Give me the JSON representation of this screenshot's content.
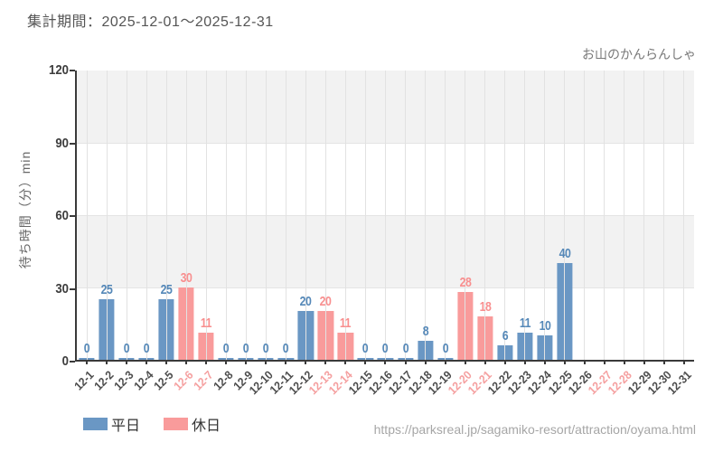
{
  "header": {
    "period_label": "集計期間：2025-12-01～2025-12-31"
  },
  "chart_data": {
    "type": "bar",
    "title": "お山のかんらんしゃ",
    "xlabel": "",
    "ylabel": "待ち時間（分）min",
    "ylim": [
      0,
      120
    ],
    "yticks": [
      0,
      30,
      60,
      90,
      120
    ],
    "grid": true,
    "legend_position": "bottom-left",
    "categories": [
      "12-1",
      "12-2",
      "12-3",
      "12-4",
      "12-5",
      "12-6",
      "12-7",
      "12-8",
      "12-9",
      "12-10",
      "12-11",
      "12-12",
      "12-13",
      "12-14",
      "12-15",
      "12-16",
      "12-17",
      "12-18",
      "12-19",
      "12-20",
      "12-21",
      "12-22",
      "12-23",
      "12-24",
      "12-25",
      "12-26",
      "12-27",
      "12-28",
      "12-29",
      "12-30",
      "12-31"
    ],
    "values": [
      0,
      25,
      0,
      0,
      25,
      30,
      11,
      0,
      0,
      0,
      0,
      20,
      20,
      11,
      0,
      0,
      0,
      8,
      0,
      28,
      18,
      6,
      11,
      10,
      40,
      null,
      null,
      null,
      null,
      null,
      null
    ],
    "day_types": [
      "weekday",
      "weekday",
      "weekday",
      "weekday",
      "weekday",
      "holiday",
      "holiday",
      "weekday",
      "weekday",
      "weekday",
      "weekday",
      "weekday",
      "holiday",
      "holiday",
      "weekday",
      "weekday",
      "weekday",
      "weekday",
      "weekday",
      "holiday",
      "holiday",
      "weekday",
      "weekday",
      "weekday",
      "weekday",
      "weekday",
      "holiday",
      "holiday",
      "weekday",
      "weekday",
      "weekday"
    ],
    "series": [
      {
        "name": "平日",
        "color": "#6A97C4"
      },
      {
        "name": "休日",
        "color": "#F99B9B"
      }
    ]
  },
  "colors": {
    "weekday_bar": "#6A97C4",
    "holiday_bar": "#F99B9B",
    "weekday_value_label": "#5588B8",
    "holiday_value_label": "#F88F8F",
    "weekday_tick_label": "#4d4d4d",
    "holiday_tick_label": "#F5A0A0"
  },
  "footer": {
    "url": "https://parksreal.jp/sagamiko-resort/attraction/oyama.html"
  }
}
